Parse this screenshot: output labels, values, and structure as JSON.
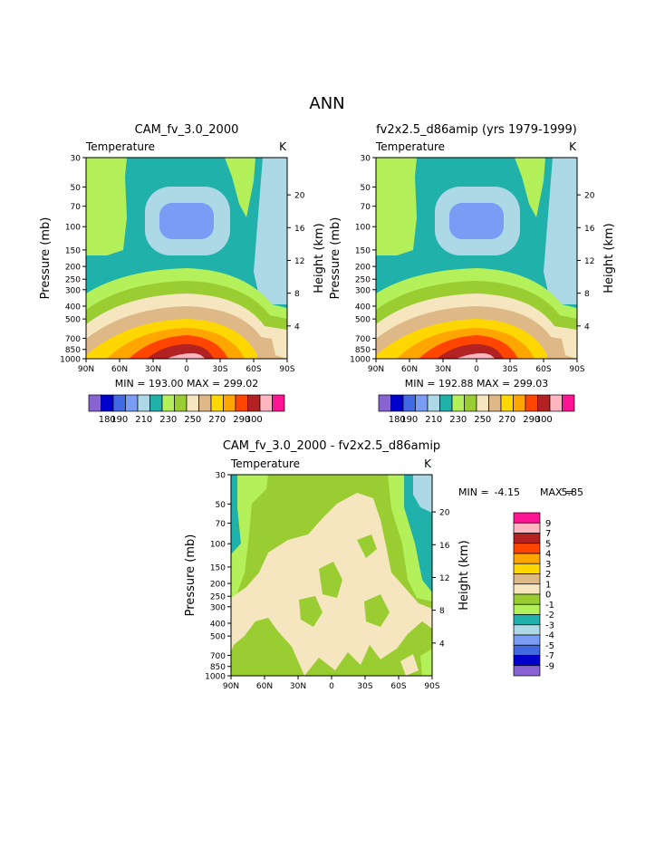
{
  "page_title": "ANN",
  "colors": {
    "temp_levels": [
      "#8a63d2",
      "#0000cd",
      "#4169e1",
      "#7b9cf5",
      "#add8e6",
      "#20b2aa",
      "#b3f05a",
      "#9acd32",
      "#f5e6c0",
      "#deb887",
      "#ffd700",
      "#ffa500",
      "#ff4500",
      "#b22222",
      "#ffb6c1",
      "#ff1493"
    ],
    "diff_levels": [
      "#8a63d2",
      "#0000cd",
      "#4169e1",
      "#7b9cf5",
      "#add8e6",
      "#20b2aa",
      "#b3f05a",
      "#9acd32",
      "#f5e6c0",
      "#deb887",
      "#ffd700",
      "#ffa500",
      "#ff4500",
      "#b22222",
      "#ffb6c1",
      "#ff1493"
    ]
  },
  "chart_data": [
    {
      "type": "contour",
      "id": "test",
      "title": "CAM_fv_3.0_2000",
      "subtitle_left": "Temperature",
      "subtitle_right": "K",
      "ylabel": "Pressure (mb)",
      "ylabel_right": "Height (km)",
      "x_ticks": [
        "90N",
        "60N",
        "30N",
        "0",
        "30S",
        "60S",
        "90S"
      ],
      "y_ticks": [
        "30",
        "50",
        "70",
        "100",
        "150",
        "200",
        "250",
        "300",
        "400",
        "500",
        "700",
        "850",
        "1000"
      ],
      "height_ticks": [
        "20",
        "16",
        "12",
        "8",
        "4"
      ],
      "ylim": [
        30,
        1000
      ],
      "min_max": "MIN = 193.00   MAX = 299.02",
      "contour_levels": [
        180,
        190,
        200,
        210,
        220,
        230,
        240,
        250,
        260,
        270,
        280,
        290,
        300
      ],
      "colorbar_labels": [
        "180",
        "190",
        "210",
        "230",
        "250",
        "270",
        "290",
        "300"
      ]
    },
    {
      "type": "contour",
      "id": "control",
      "title": "fv2x2.5_d86amip (yrs 1979-1999)",
      "subtitle_left": "Temperature",
      "subtitle_right": "K",
      "ylabel": "Pressure (mb)",
      "ylabel_right": "Height (km)",
      "x_ticks": [
        "90N",
        "60N",
        "30N",
        "0",
        "30S",
        "60S",
        "90S"
      ],
      "y_ticks": [
        "30",
        "50",
        "70",
        "100",
        "150",
        "200",
        "250",
        "300",
        "400",
        "500",
        "700",
        "850",
        "1000"
      ],
      "height_ticks": [
        "20",
        "16",
        "12",
        "8",
        "4"
      ],
      "ylim": [
        30,
        1000
      ],
      "min_max": "MIN = 192.88   MAX = 299.03",
      "contour_levels": [
        180,
        190,
        200,
        210,
        220,
        230,
        240,
        250,
        260,
        270,
        280,
        290,
        300
      ],
      "colorbar_labels": [
        "180",
        "190",
        "210",
        "230",
        "250",
        "270",
        "290",
        "300"
      ]
    },
    {
      "type": "contour",
      "id": "diff",
      "title": "CAM_fv_3.0_2000 - fv2x2.5_d86amip",
      "subtitle_left": "Temperature",
      "subtitle_right": "K",
      "ylabel": "Pressure (mb)",
      "ylabel_right": "Height (km)",
      "x_ticks": [
        "90N",
        "60N",
        "30N",
        "0",
        "30S",
        "60S",
        "90S"
      ],
      "y_ticks": [
        "30",
        "50",
        "70",
        "100",
        "150",
        "200",
        "250",
        "300",
        "400",
        "500",
        "700",
        "850",
        "1000"
      ],
      "height_ticks": [
        "20",
        "16",
        "12",
        "8",
        "4"
      ],
      "ylim": [
        30,
        1000
      ],
      "min_label": "MIN =",
      "min_value": "-4.15",
      "max_label": "MAX =",
      "max_value": "5.85",
      "colorbar_labels": [
        "9",
        "7",
        "5",
        "4",
        "3",
        "2",
        "1",
        "0",
        "-1",
        "-2",
        "-3",
        "-4",
        "-5",
        "-7",
        "-9"
      ]
    }
  ]
}
